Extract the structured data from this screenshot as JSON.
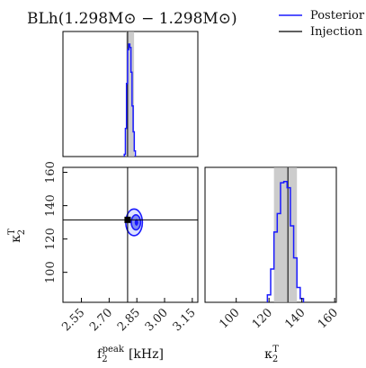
{
  "title": "BLh(1.298M⊙ − 1.298M⊙)",
  "legend": {
    "placement": "top-right",
    "entries": [
      {
        "label": "Posterior",
        "color": "#1a1aff"
      },
      {
        "label": "Injection",
        "color": "#000000"
      }
    ]
  },
  "axes": {
    "x1": {
      "label_main": "f",
      "label_sub": "2",
      "label_sup": "peak",
      "label_unit": "[kHz]",
      "range": [
        2.45,
        3.18
      ],
      "ticks": [
        2.55,
        2.7,
        2.85,
        3.0,
        3.15
      ],
      "tick_labels": [
        "2.55",
        "2.70",
        "2.85",
        "3.00",
        "3.15"
      ]
    },
    "y1": {
      "label_main": "κ",
      "label_sub": "2",
      "label_sup": "T",
      "range": [
        82,
        163
      ],
      "ticks": [
        100,
        120,
        140,
        160
      ],
      "tick_labels": [
        "100",
        "120",
        "140",
        "160"
      ]
    },
    "x2": {
      "label_main": "κ",
      "label_sub": "2",
      "label_sup": "T",
      "range": [
        81,
        161
      ],
      "ticks": [
        100,
        120,
        140,
        160
      ],
      "tick_labels": [
        "100",
        "120",
        "140",
        "160"
      ]
    }
  },
  "chart_data": {
    "type": "corner",
    "posterior_color": "#1a1aff",
    "injection": {
      "f2_peak_kHz": 2.8,
      "kappa2_T": 131.5
    },
    "f2_peak_marginal": {
      "credible_band": [
        2.792,
        2.835
      ],
      "bin_edges": [
        2.782,
        2.788,
        2.794,
        2.8,
        2.806,
        2.812,
        2.818,
        2.824,
        2.83,
        2.836,
        2.842
      ],
      "heights": [
        0.02,
        0.25,
        0.65,
        0.95,
        1.0,
        0.97,
        0.75,
        0.45,
        0.22,
        0.05
      ]
    },
    "kappa2_T_marginal": {
      "credible_band": [
        123,
        137
      ],
      "bin_edges": [
        119,
        121,
        123,
        125,
        127,
        129,
        131,
        133,
        135,
        137,
        139,
        141
      ],
      "heights": [
        0.06,
        0.27,
        0.57,
        0.72,
        0.97,
        0.98,
        0.93,
        0.62,
        0.36,
        0.12,
        0.03
      ]
    },
    "joint_contours": [
      {
        "level": "outer",
        "center": [
          2.835,
          130
        ],
        "radii": [
          0.045,
          8
        ]
      },
      {
        "level": "inner",
        "center": [
          2.845,
          130
        ],
        "radii": [
          0.025,
          4.5
        ]
      },
      {
        "level": "core",
        "center": [
          2.848,
          130
        ],
        "radii": [
          0.01,
          2
        ]
      }
    ]
  }
}
